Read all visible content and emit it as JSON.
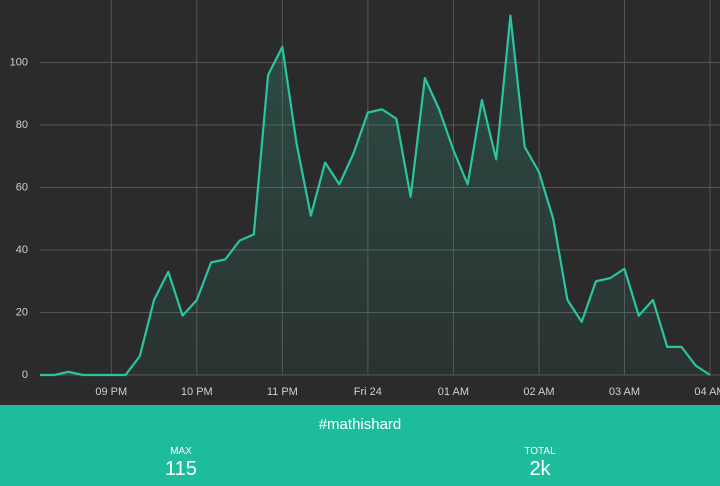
{
  "chart_data": {
    "type": "line",
    "categories": [
      null,
      null,
      null,
      null,
      null,
      "09 PM",
      null,
      null,
      null,
      null,
      null,
      "10 PM",
      null,
      null,
      null,
      null,
      null,
      "11 PM",
      null,
      null,
      null,
      null,
      null,
      "Fri 24",
      null,
      null,
      null,
      null,
      null,
      "01 AM",
      null,
      null,
      null,
      null,
      null,
      "02 AM",
      null,
      null,
      null,
      null,
      null,
      "03 AM",
      null,
      null,
      null,
      null,
      null,
      "04 AM"
    ],
    "values": [
      0,
      0,
      1,
      0,
      0,
      0,
      0,
      6,
      24,
      33,
      19,
      24,
      36,
      37,
      43,
      45,
      96,
      105,
      74,
      51,
      68,
      61,
      71,
      84,
      85,
      82,
      57,
      95,
      85,
      72,
      61,
      88,
      69,
      115,
      73,
      65,
      50,
      24,
      17,
      30,
      31,
      34,
      19,
      24,
      9,
      9,
      3,
      0
    ],
    "color": "#2bc4a0",
    "ylim": [
      0,
      120
    ],
    "yticks": [
      0,
      20,
      40,
      60,
      80,
      100
    ],
    "grid": true
  },
  "footer": {
    "title": "#mathishard",
    "stats": [
      {
        "label": "MAX",
        "value": "115"
      },
      {
        "label": "TOTAL",
        "value": "2k"
      }
    ]
  }
}
